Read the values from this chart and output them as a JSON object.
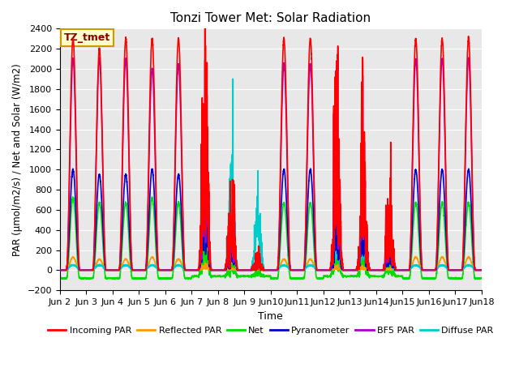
{
  "title": "Tonzi Tower Met: Solar Radiation",
  "ylabel": "PAR (μmol/m2/s) / Net and Solar (W/m2)",
  "xlabel": "Time",
  "ylim": [
    -200,
    2400
  ],
  "bg_color": "#e8e8e8",
  "plot_bg_color": "#e8e8e8",
  "grid_color": "white",
  "annotation_text": "TZ_tmet",
  "annotation_bg": "#ffffcc",
  "annotation_border": "#cc9900",
  "days": 16,
  "start_day": 2,
  "series": {
    "incoming_par": {
      "color": "#ff0000",
      "label": "Incoming PAR",
      "lw": 1.2
    },
    "reflected_par": {
      "color": "#ff9900",
      "label": "Reflected PAR",
      "lw": 1.2
    },
    "net": {
      "color": "#00dd00",
      "label": "Net",
      "lw": 1.2
    },
    "pyranometer": {
      "color": "#0000cc",
      "label": "Pyranometer",
      "lw": 1.2
    },
    "bf5_par": {
      "color": "#aa00cc",
      "label": "BF5 PAR",
      "lw": 1.2
    },
    "diffuse_par": {
      "color": "#00cccc",
      "label": "Diffuse PAR",
      "lw": 1.2
    }
  }
}
